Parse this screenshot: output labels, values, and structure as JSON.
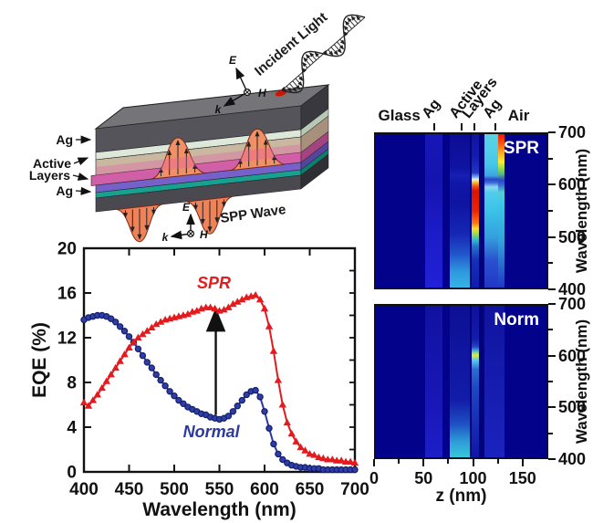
{
  "schematic": {
    "labels": {
      "ag_top": "Ag",
      "active": "Active",
      "layers": "Layers",
      "ag_bottom": "Ag",
      "spp_wave": "SPP Wave",
      "incident_light": "Incident Light",
      "e_axis": "E",
      "h_axis": "H",
      "k_axis": "k"
    }
  },
  "chart_data": [
    {
      "type": "line",
      "title": "",
      "xlabel": "Wavelength (nm)",
      "ylabel": "EQE (%)",
      "xlim": [
        400,
        700
      ],
      "ylim": [
        0,
        20
      ],
      "xticks": [
        400,
        450,
        500,
        550,
        600,
        650,
        700
      ],
      "yticks": [
        0,
        4,
        8,
        12,
        16,
        20
      ],
      "grid": false,
      "x": [
        400,
        405,
        410,
        415,
        420,
        425,
        430,
        435,
        440,
        445,
        450,
        455,
        460,
        465,
        470,
        475,
        480,
        485,
        490,
        495,
        500,
        505,
        510,
        515,
        520,
        525,
        530,
        535,
        540,
        545,
        550,
        555,
        560,
        565,
        570,
        575,
        580,
        585,
        590,
        595,
        600,
        605,
        610,
        615,
        620,
        625,
        630,
        635,
        640,
        645,
        650,
        655,
        660,
        665,
        670,
        675,
        680,
        685,
        690,
        695,
        700
      ],
      "series": [
        {
          "name": "SPR",
          "color": "#e31a1e",
          "marker": "triangle",
          "values": [
            6.2,
            5.9,
            6.4,
            6.9,
            7.5,
            8.1,
            8.7,
            9.3,
            9.9,
            10.5,
            11.1,
            11.6,
            12.0,
            12.3,
            12.6,
            12.9,
            13.2,
            13.4,
            13.6,
            13.7,
            13.8,
            13.9,
            14.0,
            14.1,
            14.3,
            14.4,
            14.6,
            14.7,
            14.7,
            14.6,
            14.4,
            14.5,
            14.7,
            15.0,
            15.2,
            15.4,
            15.6,
            15.7,
            15.8,
            15.4,
            14.6,
            13.0,
            10.8,
            8.2,
            6.0,
            4.4,
            3.4,
            2.7,
            2.2,
            1.9,
            1.6,
            1.5,
            1.3,
            1.2,
            1.1,
            1.1,
            1.0,
            1.0,
            0.9,
            0.9,
            0.8
          ]
        },
        {
          "name": "Normal",
          "color": "#2c3a9e",
          "marker": "circle",
          "values": [
            13.6,
            13.8,
            13.9,
            14.0,
            14.0,
            13.9,
            13.7,
            13.4,
            13.0,
            12.6,
            12.1,
            11.6,
            11.0,
            10.4,
            9.8,
            9.3,
            8.7,
            8.2,
            7.7,
            7.2,
            6.8,
            6.4,
            6.1,
            5.8,
            5.6,
            5.4,
            5.2,
            5.1,
            4.9,
            4.8,
            4.7,
            4.8,
            5.0,
            5.4,
            5.9,
            6.4,
            6.9,
            7.2,
            7.3,
            6.7,
            5.4,
            3.9,
            2.5,
            1.6,
            1.1,
            0.8,
            0.6,
            0.5,
            0.4,
            0.4,
            0.3,
            0.3,
            0.3,
            0.2,
            0.2,
            0.2,
            0.2,
            0.2,
            0.2,
            0.2,
            0.2
          ]
        }
      ],
      "annotations": [
        {
          "text": "SPR",
          "x": 544,
          "y": 16.4,
          "color": "#e31a1e"
        },
        {
          "text": "Normal",
          "x": 541,
          "y": 3.1,
          "color": "#2c3a9e"
        }
      ],
      "arrow": {
        "x": 546,
        "y0": 5.1,
        "y1": 14.3
      }
    },
    {
      "type": "heatmap",
      "name": "SPR",
      "ylabel": "Wavelength (nm)",
      "xlim": [
        0,
        176
      ],
      "ylim": [
        400,
        700
      ],
      "bg": "#02028a",
      "bands": [
        {
          "x0": 0.289,
          "x1": 0.389,
          "stops": [
            [
              0,
              "#2121d6"
            ],
            [
              0.35,
              "#1c1cc8"
            ],
            [
              0.7,
              "#1414ae"
            ],
            [
              1,
              "#1717b8"
            ]
          ]
        },
        {
          "x0": 0.432,
          "x1": 0.552,
          "stops": [
            [
              0,
              "#35b4e6"
            ],
            [
              0.1,
              "#2f9ade"
            ],
            [
              0.22,
              "#2055cc"
            ],
            [
              0.35,
              "#1527b4"
            ],
            [
              0.55,
              "#0f13a2"
            ],
            [
              0.68,
              "#1016a8"
            ],
            [
              0.73,
              "#1520b4"
            ],
            [
              0.78,
              "#0f13a2"
            ],
            [
              1,
              "#0c0d94"
            ]
          ]
        },
        {
          "x0": 0.552,
          "x1": 0.563,
          "stops": [
            [
              0,
              "#030378"
            ],
            [
              1,
              "#030378"
            ]
          ]
        },
        {
          "x0": 0.563,
          "x1": 0.607,
          "stops": [
            [
              0,
              "#101cae"
            ],
            [
              0.18,
              "#1430b8"
            ],
            [
              0.27,
              "#2277cc"
            ],
            [
              0.31,
              "#33bbcc"
            ],
            [
              0.35,
              "#99dd55"
            ],
            [
              0.385,
              "#ffdd22"
            ],
            [
              0.42,
              "#ff7711"
            ],
            [
              0.5,
              "#ee2200"
            ],
            [
              0.63,
              "#dd1200"
            ],
            [
              0.66,
              "#f25510"
            ],
            [
              0.69,
              "#ffcc44"
            ],
            [
              0.705,
              "#e8f2e8"
            ],
            [
              0.72,
              "#77aaee"
            ],
            [
              0.75,
              "#2236c4"
            ],
            [
              0.85,
              "#131cb0"
            ],
            [
              1,
              "#10139e"
            ]
          ]
        },
        {
          "x0": 0.607,
          "x1": 0.624,
          "stops": [
            [
              0,
              "#030378"
            ],
            [
              1,
              "#030378"
            ]
          ]
        },
        {
          "x0": 0.636,
          "x1": 0.716,
          "stops": [
            [
              0,
              "#2136c6"
            ],
            [
              0.18,
              "#2a52d0"
            ],
            [
              0.33,
              "#34a0dc"
            ],
            [
              0.5,
              "#3cc2e8"
            ],
            [
              0.62,
              "#52ccee"
            ],
            [
              0.655,
              "#8ed8f0"
            ],
            [
              0.685,
              "#3a68d6"
            ],
            [
              0.705,
              "#2a46cc"
            ],
            [
              0.73,
              "#3ea6e0"
            ],
            [
              0.8,
              "#46c6e8"
            ],
            [
              0.9,
              "#52cfe8"
            ],
            [
              1,
              "#5ad2e2"
            ]
          ]
        },
        {
          "x0": 0.716,
          "x1": 0.754,
          "stops": [
            [
              0,
              "#2136c6"
            ],
            [
              0.3,
              "#34a0dc"
            ],
            [
              0.55,
              "#3cc8e8"
            ],
            [
              0.62,
              "#55cfd0"
            ],
            [
              0.67,
              "#3a68d6"
            ],
            [
              0.7,
              "#2a46cc"
            ],
            [
              0.74,
              "#55bb88"
            ],
            [
              0.78,
              "#99dd44"
            ],
            [
              0.82,
              "#ffee33"
            ],
            [
              0.88,
              "#ffaa22"
            ],
            [
              0.94,
              "#ff5511"
            ],
            [
              1,
              "#ee1504"
            ]
          ]
        }
      ]
    },
    {
      "type": "heatmap",
      "name": "Norm",
      "xlabel": "z (nm)",
      "ylabel": "Wavelength (nm)",
      "xlim": [
        0,
        176
      ],
      "ylim": [
        400,
        700
      ],
      "bg": "#02028a",
      "bands": [
        {
          "x0": 0.289,
          "x1": 0.389,
          "stops": [
            [
              0,
              "#1e1ec8"
            ],
            [
              0.4,
              "#1717b6"
            ],
            [
              1,
              "#1112a0"
            ]
          ]
        },
        {
          "x0": 0.432,
          "x1": 0.552,
          "stops": [
            [
              0,
              "#38c8da"
            ],
            [
              0.1,
              "#2e9ed8"
            ],
            [
              0.22,
              "#1e50c4"
            ],
            [
              0.38,
              "#121ca8"
            ],
            [
              1,
              "#0d0f96"
            ]
          ]
        },
        {
          "x0": 0.552,
          "x1": 0.563,
          "stops": [
            [
              0,
              "#030378"
            ],
            [
              1,
              "#030378"
            ]
          ]
        },
        {
          "x0": 0.563,
          "x1": 0.607,
          "stops": [
            [
              0,
              "#0f17a6"
            ],
            [
              0.25,
              "#1730b6"
            ],
            [
              0.45,
              "#1e46c2"
            ],
            [
              0.58,
              "#2a6cd2"
            ],
            [
              0.62,
              "#46aee6"
            ],
            [
              0.645,
              "#66cce8"
            ],
            [
              0.662,
              "#b4e464"
            ],
            [
              0.675,
              "#cdee4f"
            ],
            [
              0.69,
              "#8ad87c"
            ],
            [
              0.705,
              "#44a8e0"
            ],
            [
              0.73,
              "#2244c4"
            ],
            [
              0.78,
              "#131cac"
            ],
            [
              1,
              "#0e109a"
            ]
          ]
        },
        {
          "x0": 0.607,
          "x1": 0.624,
          "stops": [
            [
              0,
              "#030378"
            ],
            [
              1,
              "#030378"
            ]
          ]
        },
        {
          "x0": 0.636,
          "x1": 0.754,
          "stops": [
            [
              0,
              "#1b23be"
            ],
            [
              0.5,
              "#151cae"
            ],
            [
              1,
              "#10139e"
            ]
          ]
        }
      ]
    }
  ],
  "heatmap_shared": {
    "top_labels": [
      {
        "text": "Glass",
        "x": 0.145,
        "rot": 0
      },
      {
        "text": "Ag",
        "x": 0.345,
        "rot": -52
      },
      {
        "text": "Active",
        "x": 0.5,
        "rot": -52
      },
      {
        "text": "Layers",
        "x": 0.575,
        "rot": -52
      },
      {
        "text": "Ag",
        "x": 0.695,
        "rot": -52
      },
      {
        "text": "Air",
        "x": 0.83,
        "rot": 0
      }
    ],
    "top_tick_x": [
      0.345,
      0.5,
      0.575,
      0.695
    ],
    "ytick_vals": [
      700,
      600,
      500,
      400
    ],
    "yminor": [
      650,
      550,
      450
    ],
    "xticks": [
      0,
      50,
      100,
      150
    ],
    "xminor": [
      25,
      75,
      125
    ],
    "z_label": "z (nm)",
    "wavelength_label": "Wavelength (nm)"
  }
}
